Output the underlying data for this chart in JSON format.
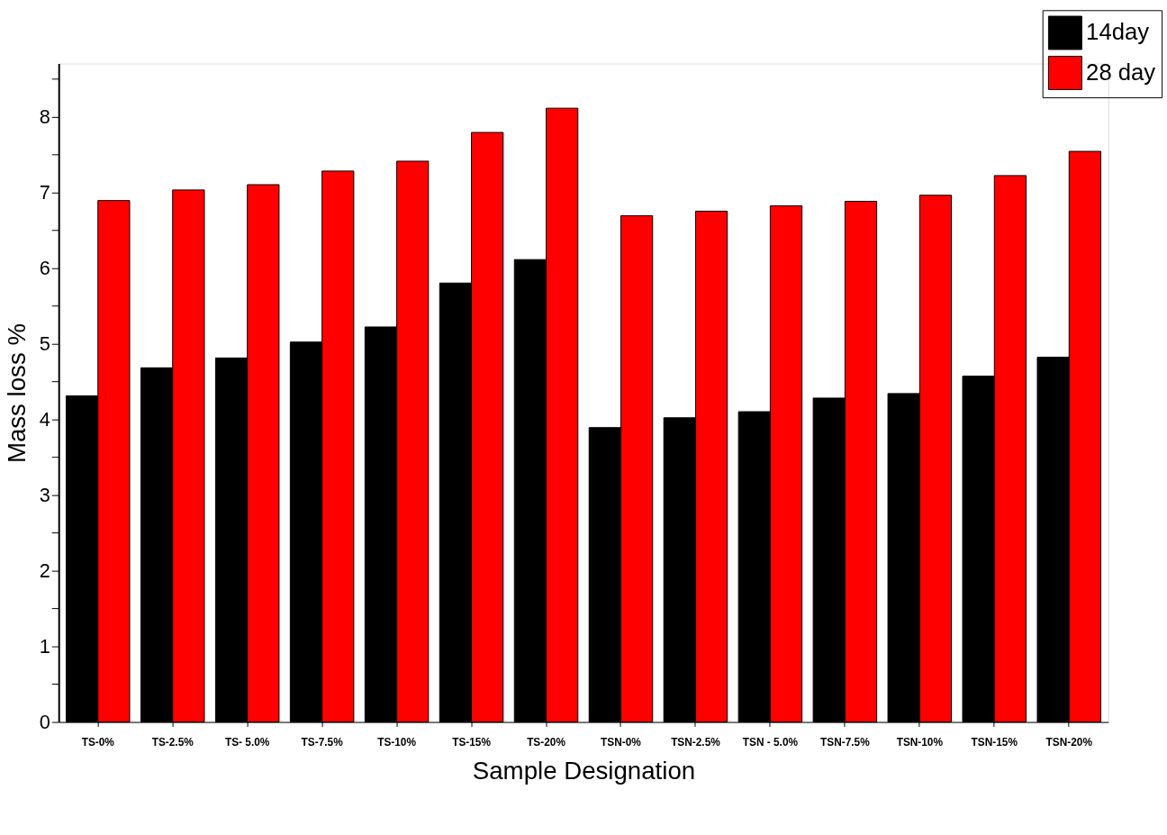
{
  "chart_data": {
    "type": "bar",
    "xlabel": "Sample Designation",
    "ylabel": "Mass loss %",
    "categories": [
      "TS-0%",
      "TS-2.5%",
      "TS- 5.0%",
      "TS-7.5%",
      "TS-10%",
      "TS-15%",
      "TS-20%",
      "TSN-0%",
      "TSN-2.5%",
      "TSN - 5.0%",
      "TSN-7.5%",
      "TSN-10%",
      "TSN-15%",
      "TSN-20%"
    ],
    "series": [
      {
        "name": "14day",
        "color": "#000000",
        "values": [
          4.31,
          4.68,
          4.81,
          5.02,
          5.22,
          5.8,
          6.11,
          3.89,
          4.02,
          4.1,
          4.28,
          4.34,
          4.57,
          4.82
        ]
      },
      {
        "name": "28 day",
        "color": "#ff0000",
        "values": [
          6.89,
          7.03,
          7.1,
          7.28,
          7.41,
          7.79,
          8.11,
          6.69,
          6.75,
          6.82,
          6.88,
          6.96,
          7.22,
          7.54
        ]
      }
    ],
    "ylim": [
      0,
      8.7
    ],
    "yticks": [
      0,
      {
        "value": 0.5,
        "label": null
      },
      1,
      {
        "value": 1.5,
        "label": null
      },
      2,
      {
        "value": 2.5,
        "label": null
      },
      3,
      {
        "value": 3.5,
        "label": null
      },
      4,
      {
        "value": 4.5,
        "label": null
      },
      5,
      {
        "value": 5.5,
        "label": null
      },
      6,
      {
        "value": 6.5,
        "label": null
      },
      7,
      {
        "value": 7.5,
        "label": null
      },
      8,
      {
        "value": 8.5,
        "label": null
      }
    ],
    "grid": false,
    "legend": "top right"
  }
}
